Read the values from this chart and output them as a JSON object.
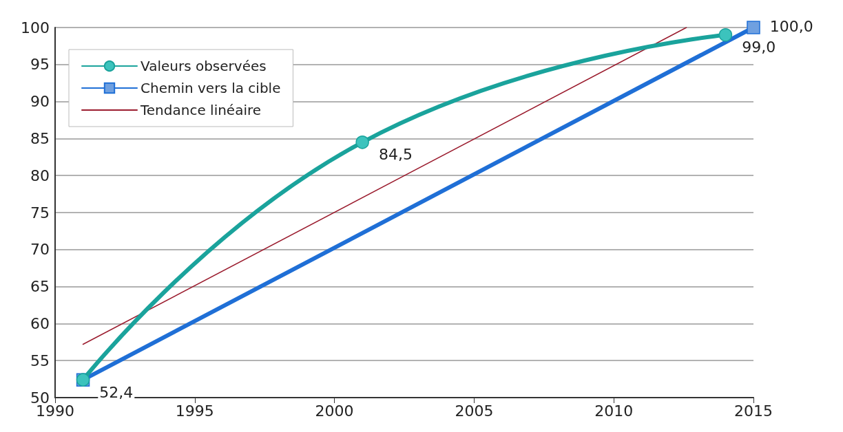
{
  "chart_data": {
    "type": "line",
    "series": [
      {
        "name": "Valeurs observées",
        "color": "#1aa39c",
        "marker": "circle",
        "x": [
          1991,
          2001,
          2014
        ],
        "values": [
          52.4,
          84.5,
          99.0
        ],
        "value_labels": [
          null,
          "84,5",
          "99,0"
        ]
      },
      {
        "name": "Chemin vers la cible",
        "color": "#1f6fd6",
        "marker": "square",
        "x": [
          1991,
          2015
        ],
        "values": [
          52.4,
          100.0
        ],
        "value_labels": [
          "52,4",
          "100,0"
        ]
      },
      {
        "name": "Tendance linéaire",
        "color": "#9b1c2e",
        "marker": "none",
        "x": [
          1991,
          2012.6
        ],
        "values": [
          57.2,
          100
        ]
      }
    ],
    "xlim": [
      1990,
      2015
    ],
    "xticks": [
      1990,
      1995,
      2000,
      2005,
      2010,
      2015
    ],
    "ylim": [
      50,
      100
    ],
    "yticks": [
      50,
      55,
      60,
      65,
      70,
      75,
      80,
      85,
      90,
      95,
      100
    ],
    "grid": "y",
    "legend": "top left"
  }
}
